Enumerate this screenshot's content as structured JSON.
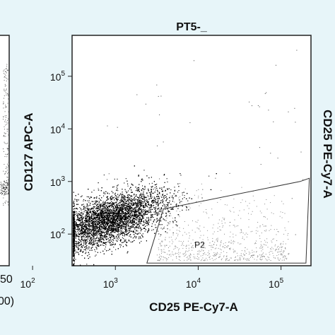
{
  "chart_data": {
    "type": "scatter",
    "title": "PT5-_",
    "xlabel": "CD25 PE-Cy7-A",
    "ylabel": "CD127 APC-A",
    "x_scale": "log",
    "y_scale": "log",
    "xlim": [
      300,
      230000
    ],
    "ylim": [
      25,
      600000
    ],
    "x_ticks": [
      {
        "value": 100,
        "base": "10",
        "exp": "2"
      },
      {
        "value": 1000,
        "base": "10",
        "exp": "3"
      },
      {
        "value": 10000,
        "base": "10",
        "exp": "4"
      },
      {
        "value": 100000,
        "base": "10",
        "exp": "5"
      }
    ],
    "y_ticks": [
      {
        "value": 100,
        "base": "10",
        "exp": "2"
      },
      {
        "value": 1000,
        "base": "10",
        "exp": "3"
      },
      {
        "value": 10000,
        "base": "10",
        "exp": "4"
      },
      {
        "value": 100000,
        "base": "10",
        "exp": "5"
      }
    ],
    "population": {
      "center": [
        850,
        190
      ],
      "spread_log": [
        0.34,
        0.28
      ],
      "approx_events": 9000
    },
    "gates": [
      {
        "name": "P2",
        "vertices": [
          [
            2400,
            28
          ],
          [
            3800,
            300
          ],
          [
            170000,
            1000
          ],
          [
            220000,
            1150
          ],
          [
            200000,
            28
          ]
        ]
      }
    ],
    "left_panel_partial": {
      "tick_fragments": [
        "50",
        "00)"
      ]
    },
    "right_panel_partial": {
      "ylabel_fragment": "CD25 PE-Cy7-A"
    }
  }
}
